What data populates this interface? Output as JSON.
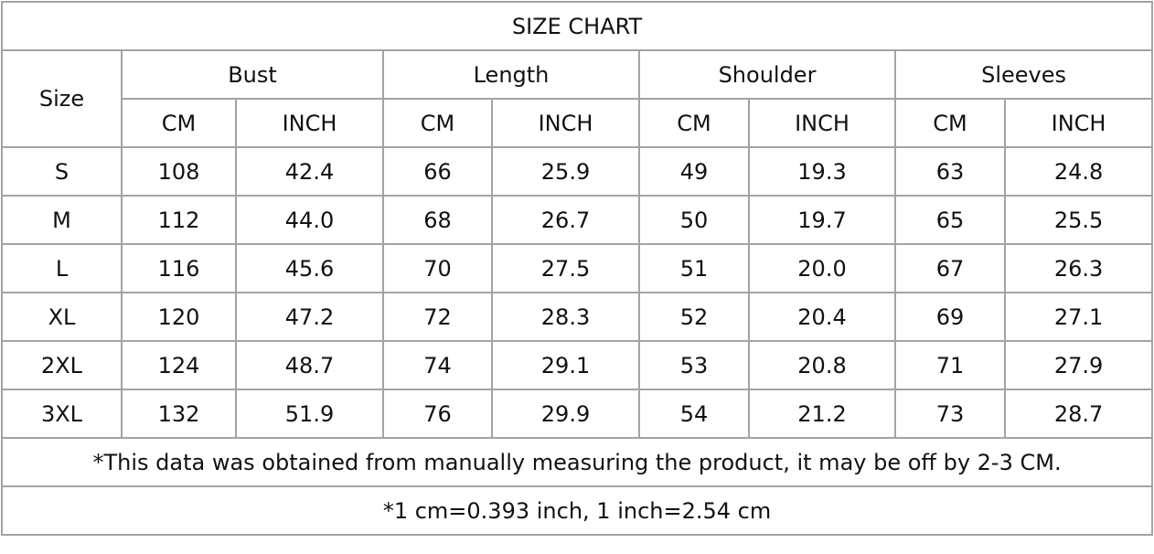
{
  "title": "SIZE CHART",
  "size_header": "Size",
  "groups": [
    "Bust",
    "Length",
    "Shoulder",
    "Sleeves"
  ],
  "units": [
    "CM",
    "INCH"
  ],
  "rows": [
    {
      "size": "S",
      "values": [
        "108",
        "42.4",
        "66",
        "25.9",
        "49",
        "19.3",
        "63",
        "24.8"
      ]
    },
    {
      "size": "M",
      "values": [
        "112",
        "44.0",
        "68",
        "26.7",
        "50",
        "19.7",
        "65",
        "25.5"
      ]
    },
    {
      "size": "L",
      "values": [
        "116",
        "45.6",
        "70",
        "27.5",
        "51",
        "20.0",
        "67",
        "26.3"
      ]
    },
    {
      "size": "XL",
      "values": [
        "120",
        "47.2",
        "72",
        "28.3",
        "52",
        "20.4",
        "69",
        "27.1"
      ]
    },
    {
      "size": "2XL",
      "values": [
        "124",
        "48.7",
        "74",
        "29.1",
        "53",
        "20.8",
        "71",
        "27.9"
      ]
    },
    {
      "size": "3XL",
      "values": [
        "132",
        "51.9",
        "76",
        "29.9",
        "54",
        "21.2",
        "73",
        "28.7"
      ]
    }
  ],
  "notes": [
    "*This data was obtained from manually measuring the product, it may be off by 2-3 CM.",
    "*1 cm=0.393 inch, 1 inch=2.54 cm"
  ],
  "colors": {
    "border": "#a3a3a3",
    "text": "#111111"
  }
}
